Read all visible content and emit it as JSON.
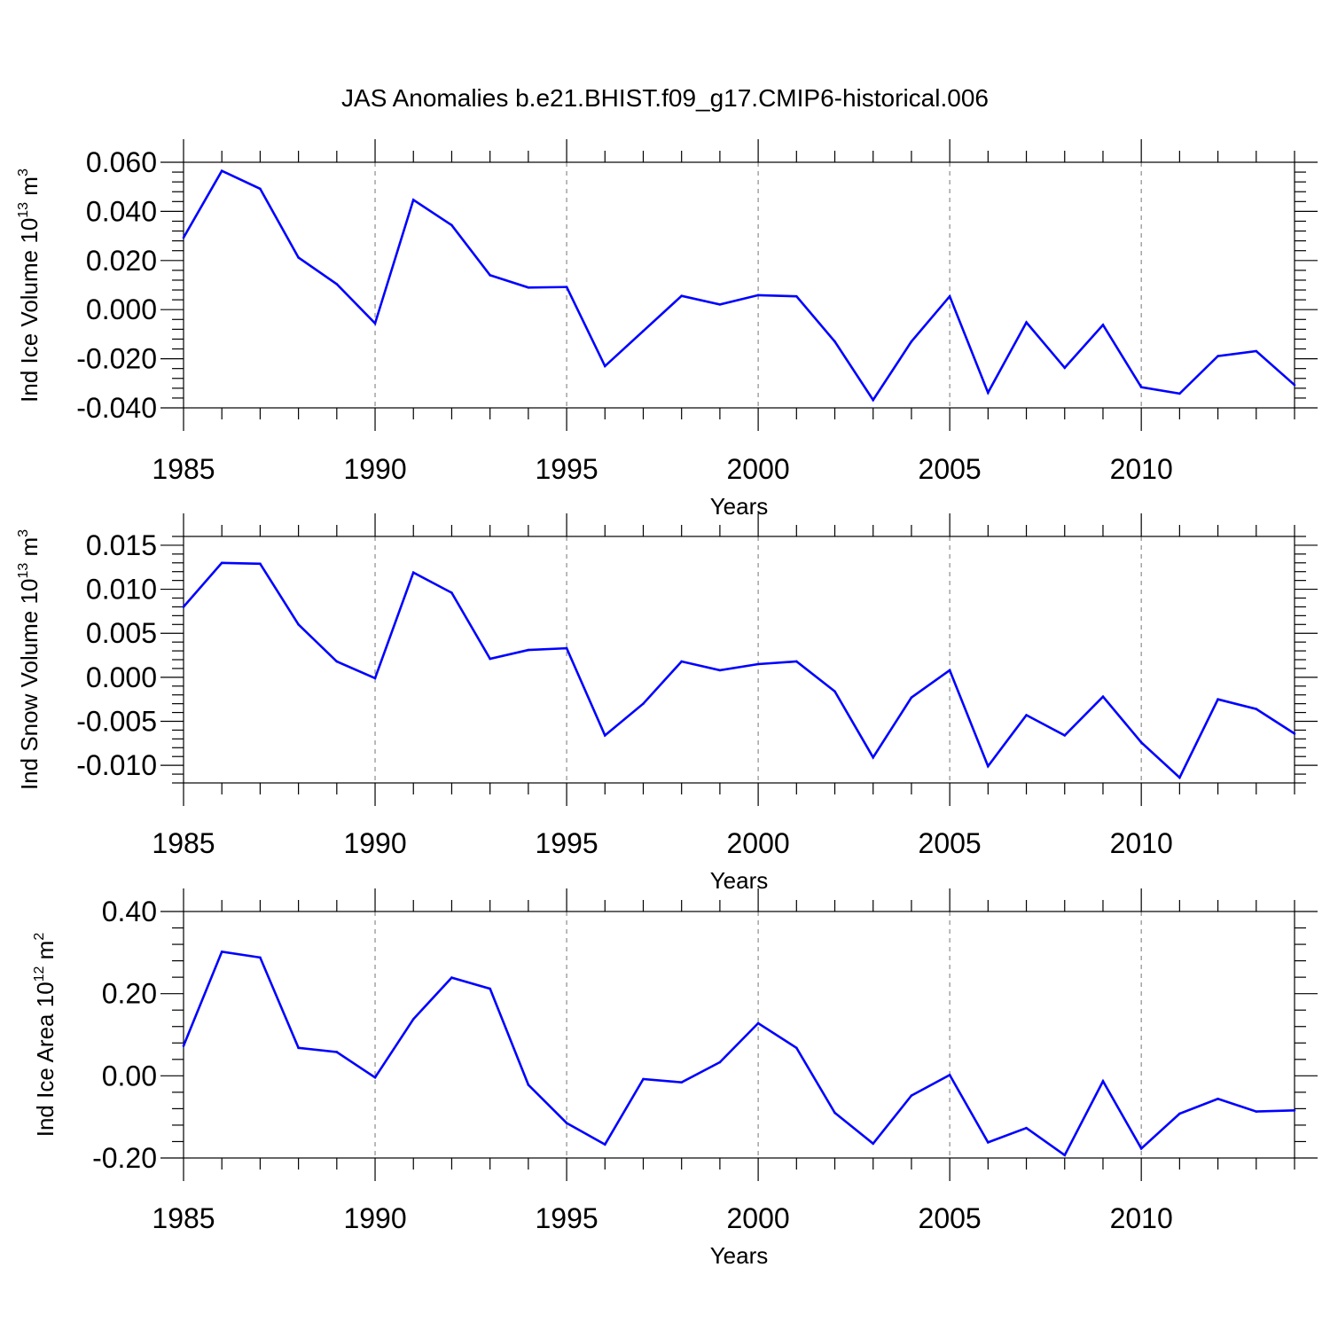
{
  "title": "JAS Anomalies b.e21.BHIST.f09_g17.CMIP6-historical.006",
  "chart_data": [
    {
      "type": "line",
      "ylabel": {
        "main": "Ind Ice Volume 10",
        "sup": "13",
        "unit": " m",
        "unit_sup": "3"
      },
      "xlabel": "Years",
      "xlim": [
        1985,
        2014
      ],
      "ylim": [
        -0.04,
        0.06
      ],
      "x_ticks": [
        1985,
        1990,
        1995,
        2000,
        2005,
        2010
      ],
      "x_tick_labels": [
        "1985",
        "1990",
        "1995",
        "2000",
        "2005",
        "2010"
      ],
      "y_ticks": [
        -0.04,
        -0.02,
        0.0,
        0.02,
        0.04,
        0.06
      ],
      "y_tick_labels": [
        "-0.040",
        "-0.020",
        "0.000",
        "0.020",
        "0.040",
        "0.060"
      ],
      "y_minor_step": 0.004,
      "grid": "vertical dashed at major x ticks",
      "color": "#0000ff",
      "x": [
        1985,
        1986,
        1987,
        1988,
        1989,
        1990,
        1991,
        1992,
        1993,
        1994,
        1995,
        1996,
        1997,
        1998,
        1999,
        2000,
        2001,
        2002,
        2003,
        2004,
        2005,
        2006,
        2007,
        2008,
        2009,
        2010,
        2011,
        2012,
        2013,
        2014
      ],
      "values": [
        0.0293,
        0.0565,
        0.0492,
        0.0212,
        0.0104,
        -0.0056,
        0.0447,
        0.0344,
        0.014,
        0.009,
        0.0092,
        -0.023,
        -0.0087,
        0.0056,
        0.0021,
        0.0059,
        0.0054,
        -0.013,
        -0.0368,
        -0.013,
        0.0054,
        -0.0338,
        -0.0052,
        -0.0237,
        -0.0062,
        -0.0316,
        -0.0342,
        -0.0189,
        -0.0169,
        -0.0307
      ]
    },
    {
      "type": "line",
      "ylabel": {
        "main": "Ind Snow Volume 10",
        "sup": "13",
        "unit": " m",
        "unit_sup": "3"
      },
      "xlabel": "Years",
      "xlim": [
        1985,
        2014
      ],
      "ylim": [
        -0.012,
        0.016
      ],
      "x_ticks": [
        1985,
        1990,
        1995,
        2000,
        2005,
        2010
      ],
      "x_tick_labels": [
        "1985",
        "1990",
        "1995",
        "2000",
        "2005",
        "2010"
      ],
      "y_ticks": [
        -0.01,
        -0.005,
        0.0,
        0.005,
        0.01,
        0.015
      ],
      "y_tick_labels": [
        "-0.010",
        "-0.005",
        "0.000",
        "0.005",
        "0.010",
        "0.015"
      ],
      "y_minor_step": 0.001,
      "grid": "vertical dashed at major x ticks",
      "color": "#0000ff",
      "x": [
        1985,
        1986,
        1987,
        1988,
        1989,
        1990,
        1991,
        1992,
        1993,
        1994,
        1995,
        1996,
        1997,
        1998,
        1999,
        2000,
        2001,
        2002,
        2003,
        2004,
        2005,
        2006,
        2007,
        2008,
        2009,
        2010,
        2011,
        2012,
        2013,
        2014
      ],
      "values": [
        0.008,
        0.013,
        0.0129,
        0.006,
        0.0018,
        -0.0001,
        0.0119,
        0.0096,
        0.0021,
        0.0031,
        0.0033,
        -0.0066,
        -0.003,
        0.0018,
        0.0008,
        0.0015,
        0.0018,
        -0.0016,
        -0.0091,
        -0.0023,
        0.0008,
        -0.0101,
        -0.0043,
        -0.0066,
        -0.0022,
        -0.0074,
        -0.0114,
        -0.0025,
        -0.0036,
        -0.0064
      ]
    },
    {
      "type": "line",
      "ylabel": {
        "main": "Ind Ice Area 10",
        "sup": "12",
        "unit": " m",
        "unit_sup": "2"
      },
      "xlabel": "Years",
      "xlim": [
        1985,
        2014
      ],
      "ylim": [
        -0.2,
        0.4
      ],
      "x_ticks": [
        1985,
        1990,
        1995,
        2000,
        2005,
        2010
      ],
      "x_tick_labels": [
        "1985",
        "1990",
        "1995",
        "2000",
        "2005",
        "2010"
      ],
      "y_ticks": [
        -0.2,
        0.0,
        0.2,
        0.4
      ],
      "y_tick_labels": [
        "-0.20",
        "0.00",
        "0.20",
        "0.40"
      ],
      "y_minor_step": 0.04,
      "grid": "vertical dashed at major x ticks",
      "color": "#0000ff",
      "x": [
        1985,
        1986,
        1987,
        1988,
        1989,
        1990,
        1991,
        1992,
        1993,
        1994,
        1995,
        1996,
        1997,
        1998,
        1999,
        2000,
        2001,
        2002,
        2003,
        2004,
        2005,
        2006,
        2007,
        2008,
        2009,
        2010,
        2011,
        2012,
        2013,
        2014
      ],
      "values": [
        0.073,
        0.302,
        0.288,
        0.068,
        0.058,
        -0.004,
        0.138,
        0.239,
        0.212,
        -0.022,
        -0.115,
        -0.167,
        -0.008,
        -0.016,
        0.033,
        0.128,
        0.068,
        -0.09,
        -0.165,
        -0.048,
        0.002,
        -0.162,
        -0.127,
        -0.193,
        -0.013,
        -0.177,
        -0.092,
        -0.056,
        -0.087,
        -0.084
      ]
    }
  ]
}
